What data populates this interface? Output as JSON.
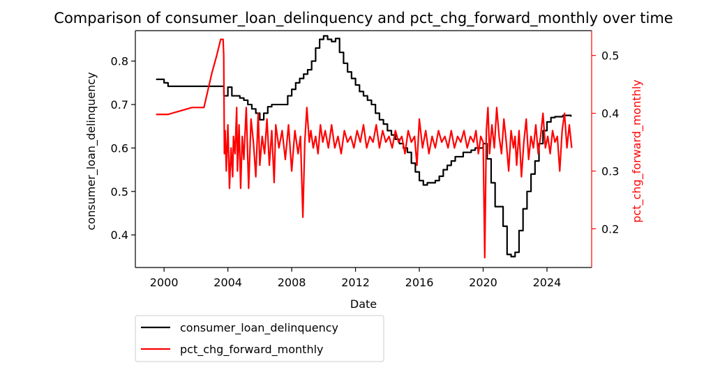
{
  "chart_data": {
    "type": "line",
    "title": "Comparison of consumer_loan_delinquency and pct_chg_forward_monthly over time",
    "xlabel": "Date",
    "ylabel_left": "consumer_loan_delinquency",
    "ylabel_right": "pct_chg_forward_monthly",
    "x_ticks": [
      "2000",
      "2004",
      "2008",
      "2012",
      "2016",
      "2020",
      "2024"
    ],
    "y_left_ticks": [
      "0.4",
      "0.5",
      "0.6",
      "0.7",
      "0.8"
    ],
    "y_right_ticks": [
      "0.2",
      "0.3",
      "0.4",
      "0.5"
    ],
    "xlim": [
      1998.2,
      2026.8
    ],
    "y_left_lim": [
      0.325,
      0.87
    ],
    "y_right_lim": [
      0.133,
      0.543
    ],
    "grid": false,
    "legend_position": "below-left",
    "series": [
      {
        "name": "consumer_loan_delinquency",
        "axis": "left",
        "color": "#000000",
        "step": true,
        "x": [
          1999.5,
          2000.0,
          2000.25,
          2003.5,
          2003.75,
          2004.0,
          2004.25,
          2004.5,
          2004.75,
          2005.0,
          2005.25,
          2005.5,
          2005.75,
          2006.0,
          2006.25,
          2006.5,
          2006.75,
          2007.0,
          2007.25,
          2007.5,
          2007.75,
          2008.0,
          2008.25,
          2008.5,
          2008.75,
          2009.0,
          2009.25,
          2009.5,
          2009.75,
          2010.0,
          2010.25,
          2010.5,
          2010.75,
          2011.0,
          2011.25,
          2011.5,
          2011.75,
          2012.0,
          2012.25,
          2012.5,
          2012.75,
          2013.0,
          2013.25,
          2013.5,
          2013.75,
          2014.0,
          2014.25,
          2014.5,
          2014.75,
          2015.0,
          2015.25,
          2015.5,
          2015.75,
          2016.0,
          2016.25,
          2016.5,
          2016.75,
          2017.0,
          2017.25,
          2017.5,
          2017.75,
          2018.0,
          2018.25,
          2018.5,
          2018.75,
          2019.0,
          2019.25,
          2019.5,
          2019.75,
          2020.0,
          2020.25,
          2020.5,
          2020.75,
          2021.0,
          2021.25,
          2021.5,
          2021.75,
          2022.0,
          2022.25,
          2022.5,
          2022.75,
          2023.0,
          2023.25,
          2023.5,
          2023.75,
          2024.0,
          2024.25,
          2024.5,
          2024.75,
          2025.0,
          2025.25,
          2025.5
        ],
        "values": [
          0.758,
          0.75,
          0.742,
          0.742,
          0.72,
          0.74,
          0.72,
          0.72,
          0.715,
          0.71,
          0.7,
          0.69,
          0.68,
          0.665,
          0.68,
          0.695,
          0.7,
          0.7,
          0.7,
          0.7,
          0.72,
          0.735,
          0.75,
          0.76,
          0.77,
          0.78,
          0.8,
          0.83,
          0.85,
          0.858,
          0.85,
          0.845,
          0.852,
          0.82,
          0.795,
          0.775,
          0.76,
          0.745,
          0.73,
          0.72,
          0.71,
          0.7,
          0.68,
          0.665,
          0.655,
          0.64,
          0.63,
          0.62,
          0.61,
          0.6,
          0.59,
          0.565,
          0.545,
          0.525,
          0.515,
          0.52,
          0.52,
          0.525,
          0.535,
          0.55,
          0.56,
          0.57,
          0.58,
          0.58,
          0.59,
          0.59,
          0.595,
          0.6,
          0.6,
          0.61,
          0.575,
          0.52,
          0.465,
          0.465,
          0.42,
          0.355,
          0.35,
          0.36,
          0.41,
          0.46,
          0.5,
          0.54,
          0.57,
          0.61,
          0.64,
          0.66,
          0.67,
          0.672,
          0.672,
          0.675,
          0.675,
          0.672
        ]
      },
      {
        "name": "pct_chg_forward_monthly",
        "axis": "right",
        "color": "#ff0000",
        "step": false,
        "x": [
          1999.5,
          2000.25,
          2001.0,
          2001.75,
          2002.0,
          2002.5,
          2003.0,
          2003.3,
          2003.55,
          2003.7,
          2003.74,
          2003.78,
          2003.83,
          2003.9,
          2004.0,
          2004.1,
          2004.2,
          2004.3,
          2004.35,
          2004.45,
          2004.55,
          2004.6,
          2004.7,
          2004.8,
          2004.9,
          2005.0,
          2005.15,
          2005.3,
          2005.45,
          2005.6,
          2005.75,
          2005.9,
          2006.0,
          2006.15,
          2006.3,
          2006.45,
          2006.6,
          2006.75,
          2006.9,
          2007.0,
          2007.2,
          2007.4,
          2007.6,
          2007.8,
          2008.0,
          2008.2,
          2008.4,
          2008.55,
          2008.7,
          2008.82,
          2008.95,
          2009.1,
          2009.2,
          2009.35,
          2009.5,
          2009.65,
          2009.8,
          2009.95,
          2010.1,
          2010.3,
          2010.5,
          2010.7,
          2010.9,
          2011.1,
          2011.3,
          2011.5,
          2011.7,
          2011.9,
          2012.1,
          2012.3,
          2012.5,
          2012.7,
          2012.9,
          2013.1,
          2013.3,
          2013.5,
          2013.7,
          2013.9,
          2014.1,
          2014.3,
          2014.5,
          2014.7,
          2014.9,
          2015.1,
          2015.3,
          2015.5,
          2015.7,
          2015.85,
          2016.0,
          2016.2,
          2016.4,
          2016.6,
          2016.8,
          2017.0,
          2017.2,
          2017.4,
          2017.6,
          2017.8,
          2018.0,
          2018.2,
          2018.4,
          2018.6,
          2018.8,
          2019.0,
          2019.2,
          2019.4,
          2019.55,
          2019.7,
          2019.85,
          2020.0,
          2020.1,
          2020.2,
          2020.3,
          2020.4,
          2020.55,
          2020.7,
          2020.85,
          2021.0,
          2021.15,
          2021.3,
          2021.45,
          2021.6,
          2021.75,
          2021.9,
          2022.0,
          2022.1,
          2022.25,
          2022.4,
          2022.55,
          2022.7,
          2022.85,
          2023.0,
          2023.15,
          2023.3,
          2023.45,
          2023.6,
          2023.75,
          2023.9,
          2024.05,
          2024.2,
          2024.35,
          2024.5,
          2024.65,
          2024.8,
          2024.95,
          2025.1,
          2025.25,
          2025.4,
          2025.55
        ],
        "values": [
          0.398,
          0.398,
          0.404,
          0.41,
          0.41,
          0.41,
          0.47,
          0.5,
          0.528,
          0.528,
          0.5,
          0.33,
          0.37,
          0.3,
          0.38,
          0.27,
          0.34,
          0.29,
          0.36,
          0.33,
          0.41,
          0.3,
          0.38,
          0.27,
          0.36,
          0.32,
          0.41,
          0.27,
          0.39,
          0.35,
          0.29,
          0.4,
          0.31,
          0.36,
          0.33,
          0.39,
          0.31,
          0.37,
          0.28,
          0.38,
          0.34,
          0.37,
          0.32,
          0.38,
          0.3,
          0.37,
          0.33,
          0.36,
          0.22,
          0.35,
          0.41,
          0.35,
          0.37,
          0.34,
          0.36,
          0.33,
          0.38,
          0.35,
          0.37,
          0.34,
          0.38,
          0.34,
          0.36,
          0.33,
          0.37,
          0.35,
          0.36,
          0.34,
          0.37,
          0.35,
          0.38,
          0.34,
          0.36,
          0.35,
          0.38,
          0.34,
          0.37,
          0.35,
          0.36,
          0.34,
          0.37,
          0.35,
          0.36,
          0.33,
          0.37,
          0.35,
          0.36,
          0.31,
          0.39,
          0.34,
          0.37,
          0.33,
          0.36,
          0.34,
          0.37,
          0.35,
          0.36,
          0.34,
          0.37,
          0.34,
          0.36,
          0.35,
          0.37,
          0.34,
          0.36,
          0.35,
          0.37,
          0.33,
          0.36,
          0.35,
          0.15,
          0.37,
          0.41,
          0.33,
          0.38,
          0.34,
          0.41,
          0.36,
          0.33,
          0.39,
          0.35,
          0.3,
          0.37,
          0.34,
          0.36,
          0.31,
          0.37,
          0.29,
          0.35,
          0.39,
          0.32,
          0.36,
          0.34,
          0.38,
          0.33,
          0.36,
          0.4,
          0.34,
          0.36,
          0.33,
          0.37,
          0.35,
          0.36,
          0.3,
          0.37,
          0.4,
          0.34,
          0.38,
          0.34
        ]
      }
    ]
  }
}
